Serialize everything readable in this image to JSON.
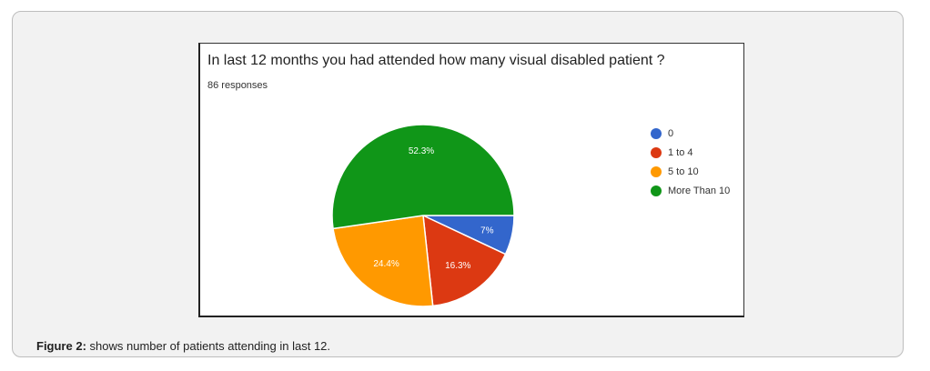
{
  "caption": {
    "label": "Figure 2:",
    "text": " shows number of patients attending in last 12."
  },
  "chart_data": {
    "type": "pie",
    "title": "In last 12 months you had attended how many visual disabled patient ?",
    "subtitle": "86 responses",
    "legend_position": "right",
    "slices": [
      {
        "label": "0",
        "value": 7,
        "value_label": "7%",
        "color": "#3366cc"
      },
      {
        "label": "1 to 4",
        "value": 16.3,
        "value_label": "16.3%",
        "color": "#dc3912"
      },
      {
        "label": "5 to 10",
        "value": 24.4,
        "value_label": "24.4%",
        "color": "#ff9900"
      },
      {
        "label": "More Than 10",
        "value": 52.3,
        "value_label": "52.3%",
        "color": "#109618"
      }
    ]
  }
}
